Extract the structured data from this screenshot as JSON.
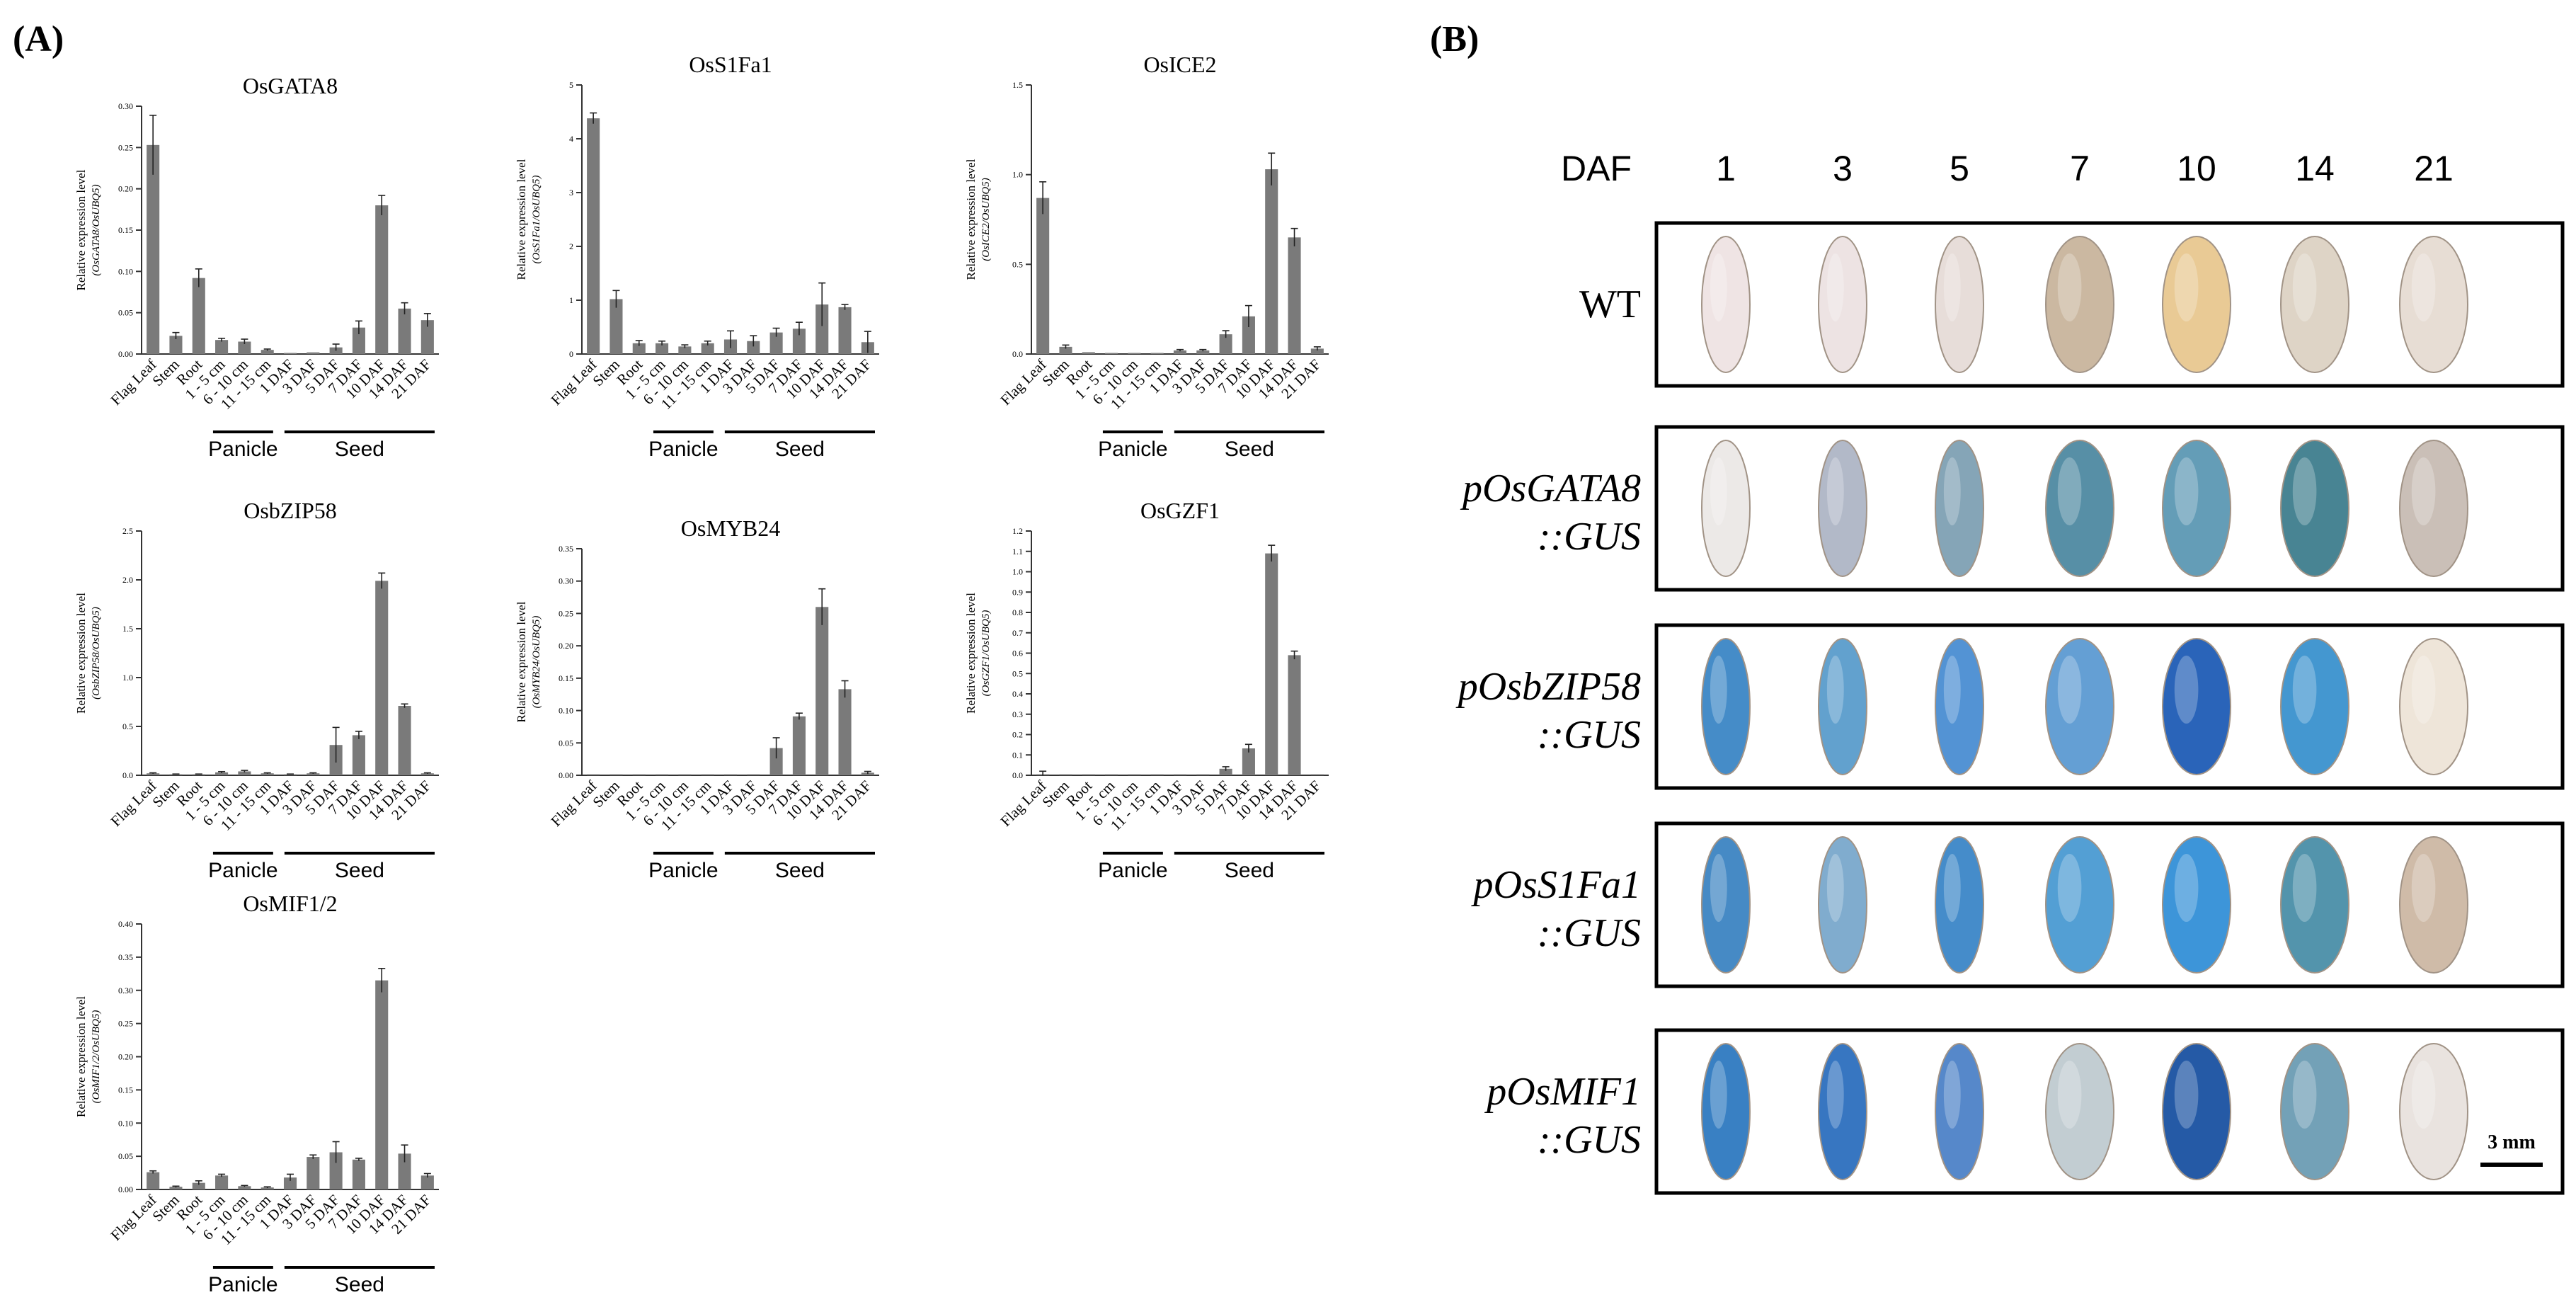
{
  "panel_labels": {
    "a": "(A)",
    "b": "(B)"
  },
  "tissues": [
    "Flag Leaf",
    "Stem",
    "Root",
    "1 - 5 cm",
    "6 - 10 cm",
    "11 - 15 cm",
    "1 DAF",
    "3 DAF",
    "5 DAF",
    "7 DAF",
    "10 DAF",
    "14 DAF",
    "21 DAF"
  ],
  "groups": {
    "panicle": "Panicle",
    "seed": "Seed"
  },
  "ylabel_prefix": "Relative expression level",
  "chart_data": [
    {
      "type": "bar",
      "title": "OsGATA8",
      "ylabel_sub": "(OsGATA8/OsUBQ5)",
      "ylim": [
        0,
        0.3
      ],
      "ticks": [
        "0.00",
        "0.05",
        "0.10",
        "0.15",
        "0.20",
        "0.25",
        "0.30"
      ],
      "values": [
        0.253,
        0.022,
        0.092,
        0.017,
        0.015,
        0.005,
        0.001,
        0.002,
        0.008,
        0.032,
        0.18,
        0.055,
        0.041
      ],
      "errors": [
        0.036,
        0.004,
        0.011,
        0.002,
        0.003,
        0.001,
        0.0,
        0.0,
        0.004,
        0.008,
        0.012,
        0.007,
        0.008
      ]
    },
    {
      "type": "bar",
      "title": "OsS1Fa1",
      "ylabel_sub": "(OsS1Fa1/OsUBQ5)",
      "ylim": [
        0,
        5
      ],
      "ticks": [
        "0",
        "1",
        "2",
        "3",
        "4",
        "5"
      ],
      "values": [
        4.38,
        1.02,
        0.2,
        0.2,
        0.14,
        0.2,
        0.27,
        0.24,
        0.4,
        0.47,
        0.92,
        0.87,
        0.22
      ],
      "errors": [
        0.1,
        0.16,
        0.05,
        0.04,
        0.03,
        0.04,
        0.16,
        0.1,
        0.08,
        0.12,
        0.4,
        0.05,
        0.2
      ]
    },
    {
      "type": "bar",
      "title": "OsICE2",
      "ylabel_sub": "(OsICE2/OsUBQ5)",
      "ylim": [
        0,
        1.5
      ],
      "ticks": [
        "0.0",
        "0.5",
        "1.0",
        "1.5"
      ],
      "values": [
        0.87,
        0.04,
        0.01,
        0.005,
        0.003,
        0.003,
        0.02,
        0.02,
        0.11,
        0.21,
        1.03,
        0.65,
        0.03
      ],
      "errors": [
        0.09,
        0.01,
        0.0,
        0.0,
        0.0,
        0.0,
        0.005,
        0.005,
        0.02,
        0.06,
        0.09,
        0.05,
        0.01
      ]
    },
    {
      "type": "bar",
      "title": "OsbZIP58",
      "ylabel_sub": "(OsbZIP58/OsUBQ5)",
      "ylim": [
        0,
        2.5
      ],
      "ticks": [
        "0.0",
        "0.5",
        "1.0",
        "1.5",
        "2.0",
        "2.5"
      ],
      "values": [
        0.02,
        0.01,
        0.01,
        0.03,
        0.04,
        0.02,
        0.01,
        0.02,
        0.31,
        0.41,
        1.99,
        0.71,
        0.02
      ],
      "errors": [
        0.005,
        0.003,
        0.003,
        0.008,
        0.01,
        0.005,
        0.003,
        0.005,
        0.18,
        0.04,
        0.08,
        0.02,
        0.005
      ]
    },
    {
      "type": "bar",
      "title": "OsMYB24",
      "ylabel_sub": "(OsMYB24/OsUBQ5)",
      "ylim": [
        0,
        0.35
      ],
      "ticks": [
        "0.00",
        "0.05",
        "0.10",
        "0.15",
        "0.20",
        "0.25",
        "0.30",
        "0.35"
      ],
      "values": [
        0.0005,
        0.001,
        0.0005,
        0.0005,
        0.001,
        0.0005,
        0.0005,
        0.0005,
        0.042,
        0.091,
        0.26,
        0.133,
        0.004
      ],
      "errors": [
        0.0,
        0.0,
        0.0,
        0.0,
        0.0,
        0.0,
        0.0,
        0.0,
        0.016,
        0.005,
        0.028,
        0.013,
        0.002
      ]
    },
    {
      "type": "bar",
      "title": "OsGZF1",
      "ylabel_sub": "(OsGZF1/OsUBQ5)",
      "ylim": [
        0,
        1.2
      ],
      "ticks": [
        "0.0",
        "0.1",
        "0.2",
        "0.3",
        "0.4",
        "0.5",
        "0.6",
        "0.7",
        "0.8",
        "0.9",
        "1.0",
        "1.1",
        "1.2"
      ],
      "values": [
        0.005,
        0.003,
        0.003,
        0.003,
        0.003,
        0.003,
        0.003,
        0.005,
        0.032,
        0.132,
        1.09,
        0.59,
        0.003
      ],
      "errors": [
        0.015,
        0.0,
        0.0,
        0.0,
        0.0,
        0.0,
        0.0,
        0.0,
        0.01,
        0.02,
        0.04,
        0.02,
        0.0
      ]
    },
    {
      "type": "bar",
      "title": "OsMIF1/2",
      "ylabel_sub": "(OsMIF1/2/OsUBQ5)",
      "ylim": [
        0,
        0.4
      ],
      "ticks": [
        "0.00",
        "0.05",
        "0.10",
        "0.15",
        "0.20",
        "0.25",
        "0.30",
        "0.35",
        "0.40"
      ],
      "values": [
        0.026,
        0.004,
        0.01,
        0.021,
        0.005,
        0.003,
        0.018,
        0.049,
        0.056,
        0.045,
        0.315,
        0.054,
        0.021
      ],
      "errors": [
        0.002,
        0.001,
        0.003,
        0.002,
        0.001,
        0.001,
        0.005,
        0.003,
        0.016,
        0.002,
        0.018,
        0.013,
        0.003
      ]
    }
  ],
  "seed_panel": {
    "daf_label": "DAF",
    "days": [
      "1",
      "3",
      "5",
      "7",
      "10",
      "14",
      "21"
    ],
    "rows": [
      {
        "line1": "WT",
        "line2": "",
        "shades": [
          "#efe3e3",
          "#ede2e2",
          "#e6dcd8",
          "#c9b59c",
          "#e8c890",
          "#ddd2c4",
          "#e6dcd2"
        ]
      },
      {
        "line1": "pOsGATA8",
        "line2": "::GUS",
        "shades": [
          "#ece8e6",
          "#aeb6c6",
          "#7fa1b4",
          "#4f8aa2",
          "#5c98b4",
          "#3f7e8e",
          "#c8bcb4"
        ]
      },
      {
        "line1": "pOsbZIP58",
        "line2": "::GUS",
        "shades": [
          "#3c86c6",
          "#5a9ccc",
          "#4a8ed2",
          "#5c9ad2",
          "#1f5cb6",
          "#3a92ce",
          "#eee4d8"
        ]
      },
      {
        "line1": "pOsS1Fa1",
        "line2": "::GUS",
        "shades": [
          "#3d84c2",
          "#7aa8cc",
          "#3c86c8",
          "#4a9ad2",
          "#3390d8",
          "#4a8fa8",
          "#cdb8a4"
        ]
      },
      {
        "line1": "pOsMIF1",
        "line2": "::GUS",
        "shades": [
          "#2f7ac0",
          "#2d6fbe",
          "#4d82c8",
          "#bfcbd0",
          "#1a52a2",
          "#6c9cb4",
          "#e8e2de"
        ]
      }
    ],
    "scale_bar": "3 mm"
  }
}
